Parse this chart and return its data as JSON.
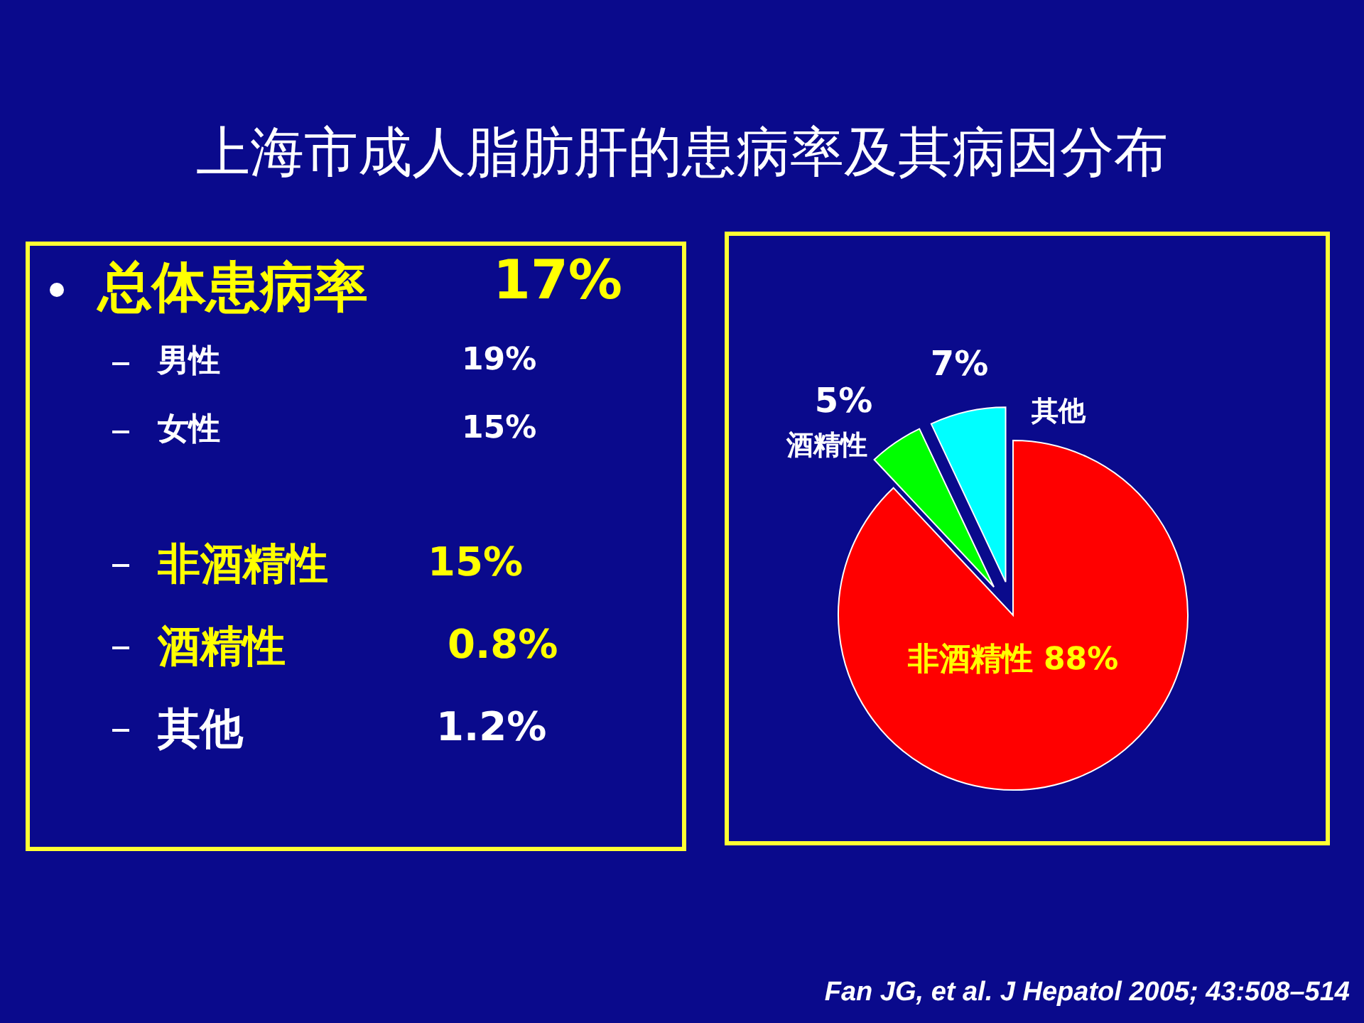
{
  "chart_data": [
    {
      "type": "other",
      "title": "上海市成人脂肪肝的患病率及其病因分布",
      "annotations": [
        "总体患病率",
        "17%",
        "男性",
        "19%",
        "女性",
        "15%",
        "非酒精性",
        "15%",
        "酒精性",
        "0.8%",
        "其他",
        "1.2%"
      ]
    },
    {
      "type": "pie",
      "categories": [
        "非酒精性",
        "酒精性",
        "其他"
      ],
      "values": [
        88,
        5,
        7
      ],
      "colors": [
        "#ff0000",
        "#00ff00",
        "#00ffff"
      ],
      "value_labels": [
        "88%",
        "5%",
        "7%"
      ],
      "annotations": [
        "Fan JG, et al. J Hepatol 2005; 43:508–514"
      ]
    }
  ]
}
